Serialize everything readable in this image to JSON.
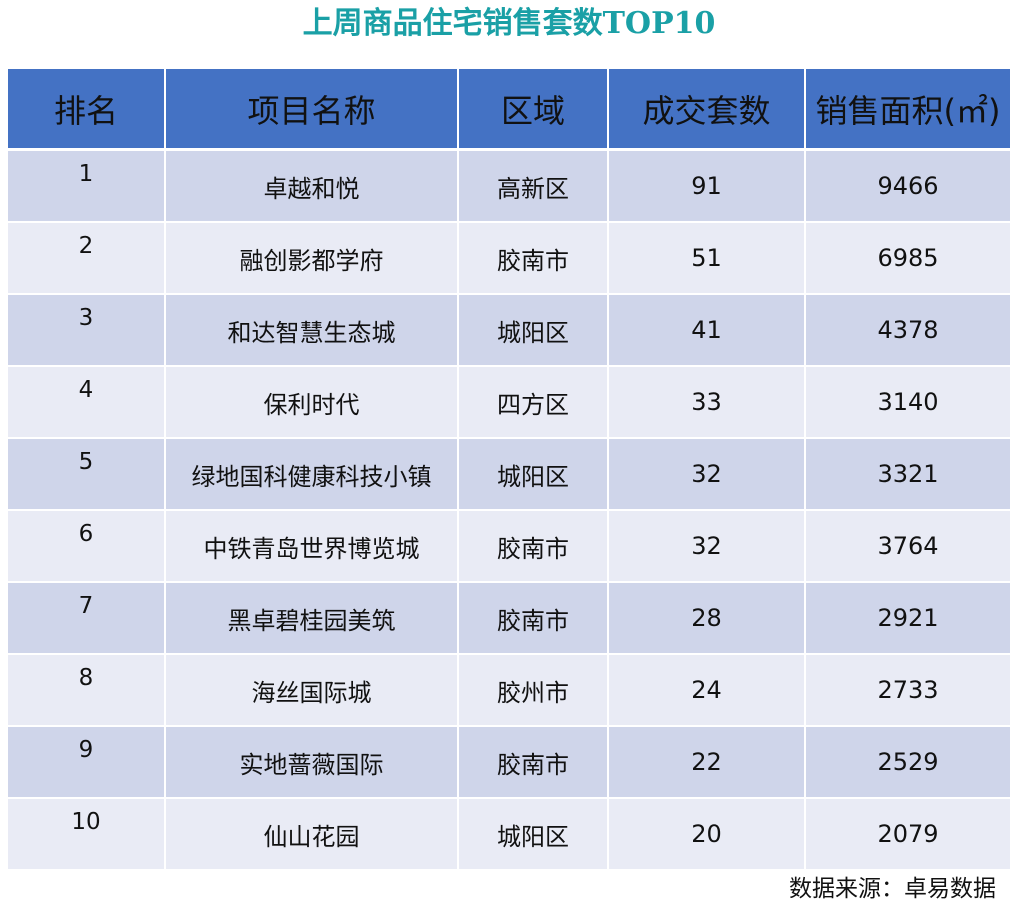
{
  "title": "上周商品住宅销售套数TOP10",
  "table": {
    "headers": [
      "排名",
      "项目名称",
      "区域",
      "成交套数",
      "销售面积(㎡)"
    ],
    "rows": [
      {
        "rank": "1",
        "name": "卓越和悦",
        "area": "高新区",
        "units": "91",
        "sales_area": "9466"
      },
      {
        "rank": "2",
        "name": "融创影都学府",
        "area": "胶南市",
        "units": "51",
        "sales_area": "6985"
      },
      {
        "rank": "3",
        "name": "和达智慧生态城",
        "area": "城阳区",
        "units": "41",
        "sales_area": "4378"
      },
      {
        "rank": "4",
        "name": "保利时代",
        "area": "四方区",
        "units": "33",
        "sales_area": "3140"
      },
      {
        "rank": "5",
        "name": "绿地国科健康科技小镇",
        "area": "城阳区",
        "units": "32",
        "sales_area": "3321"
      },
      {
        "rank": "6",
        "name": "中铁青岛世界博览城",
        "area": "胶南市",
        "units": "32",
        "sales_area": "3764"
      },
      {
        "rank": "7",
        "name": "黑卓碧桂园美筑",
        "area": "胶南市",
        "units": "28",
        "sales_area": "2921"
      },
      {
        "rank": "8",
        "name": "海丝国际城",
        "area": "胶州市",
        "units": "24",
        "sales_area": "2733"
      },
      {
        "rank": "9",
        "name": "实地蔷薇国际",
        "area": "胶南市",
        "units": "22",
        "sales_area": "2529"
      },
      {
        "rank": "10",
        "name": "仙山花园",
        "area": "城阳区",
        "units": "20",
        "sales_area": "2079"
      }
    ]
  },
  "source": "数据来源：卓易数据",
  "colors": {
    "title": "#1aa0a6",
    "header_bg": "#4472c4",
    "row_dark": "#cfd5ea",
    "row_light": "#e9ebf5"
  }
}
